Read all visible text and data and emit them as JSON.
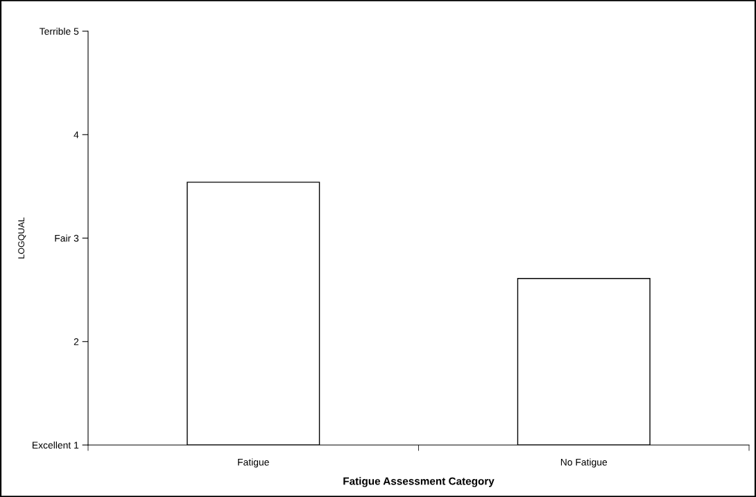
{
  "chart_data": {
    "type": "bar",
    "xlabel": "Fatigue Assessment Category",
    "ylabel": "LOGQUAL",
    "categories": [
      "Fatigue",
      "No Fatigue"
    ],
    "values": [
      3.54,
      2.61
    ],
    "color": "#ffffff",
    "ylim": [
      1,
      5
    ],
    "yticks": [
      {
        "value": 1,
        "label": "Excellent 1"
      },
      2,
      {
        "value": 3,
        "label": "Fair 3"
      },
      4,
      {
        "value": 5,
        "label": "Terrible 5"
      }
    ],
    "grid": false,
    "legend": false
  }
}
